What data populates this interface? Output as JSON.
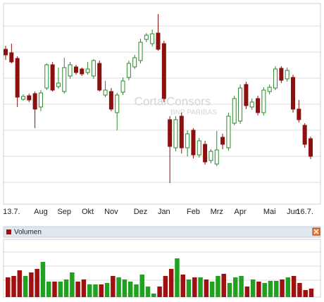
{
  "chart_data": [
    {
      "type": "candlestick",
      "watermark": "CortalConsors",
      "watermark_sub": "BNP PARIBAS",
      "categories": [
        null,
        "13.7.",
        null,
        null,
        null,
        null,
        "Aug",
        null,
        null,
        null,
        "Sep",
        null,
        null,
        null,
        "Okt",
        null,
        null,
        null,
        "Nov",
        null,
        null,
        null,
        null,
        "Dez",
        null,
        null,
        null,
        "Jan",
        null,
        null,
        null,
        null,
        "Feb",
        null,
        null,
        null,
        "Mrz",
        null,
        null,
        null,
        "Apr",
        null,
        null,
        null,
        null,
        "Mai",
        null,
        null,
        null,
        "Jun",
        null,
        "16.7.",
        null
      ],
      "open": [
        220,
        215,
        207,
        149,
        154,
        157,
        138,
        165,
        198,
        167,
        160,
        182,
        195,
        192,
        187,
        182,
        200,
        155,
        160,
        130,
        159,
        180,
        195,
        204,
        234,
        228,
        243,
        228,
        120,
        80,
        125,
        80,
        105,
        70,
        85,
        62,
        57,
        95,
        80,
        115,
        118,
        170,
        138,
        150,
        130,
        160,
        165,
        193,
        178,
        180,
        135,
        112,
        93
      ],
      "high": [
        225,
        228,
        210,
        156,
        157,
        160,
        162,
        200,
        202,
        194,
        208,
        202,
        198,
        194,
        202,
        206,
        204,
        175,
        165,
        158,
        180,
        204,
        212,
        235,
        243,
        248,
        270,
        232,
        125,
        125,
        130,
        105,
        108,
        94,
        90,
        78,
        104,
        100,
        130,
        154,
        170,
        174,
        150,
        154,
        166,
        170,
        196,
        196,
        194,
        184,
        148,
        115,
        96
      ],
      "low": [
        205,
        200,
        138,
        147,
        145,
        108,
        132,
        162,
        160,
        164,
        157,
        178,
        184,
        182,
        184,
        178,
        160,
        152,
        132,
        105,
        155,
        176,
        192,
        200,
        230,
        224,
        218,
        145,
        30,
        75,
        72,
        68,
        65,
        66,
        56,
        58,
        54,
        78,
        76,
        112,
        114,
        135,
        134,
        126,
        126,
        156,
        162,
        172,
        174,
        130,
        116,
        80,
        64
      ],
      "close": [
        212,
        202,
        152,
        153,
        148,
        135,
        158,
        198,
        162,
        172,
        194,
        198,
        187,
        185,
        192,
        204,
        162,
        162,
        135,
        155,
        175,
        200,
        208,
        230,
        240,
        242,
        220,
        150,
        82,
        120,
        80,
        100,
        70,
        90,
        60,
        75,
        77,
        85,
        125,
        150,
        165,
        140,
        145,
        130,
        162,
        166,
        192,
        176,
        190,
        135,
        120,
        85,
        68
      ],
      "up_color": "#2a8a2a",
      "down_color": "#8b1010",
      "ylim": [
        0,
        285
      ],
      "yticks": [
        31,
        68,
        105,
        142,
        179,
        216,
        253
      ],
      "grid": true
    },
    {
      "type": "bar",
      "title": "Volumen",
      "values": [
        28,
        30,
        38,
        30,
        35,
        40,
        50,
        22,
        22,
        22,
        25,
        35,
        22,
        25,
        18,
        18,
        18,
        20,
        30,
        28,
        25,
        22,
        18,
        32,
        15,
        5,
        15,
        30,
        40,
        55,
        32,
        25,
        28,
        28,
        25,
        22,
        30,
        33,
        20,
        28,
        30,
        15,
        25,
        22,
        20,
        23,
        23,
        25,
        28,
        30,
        20,
        10,
        12
      ],
      "up_color": "#22a022",
      "down_color": "#a01010",
      "ylim": [
        0,
        82
      ],
      "yticks": [
        24,
        44,
        64
      ],
      "grid": true
    }
  ]
}
